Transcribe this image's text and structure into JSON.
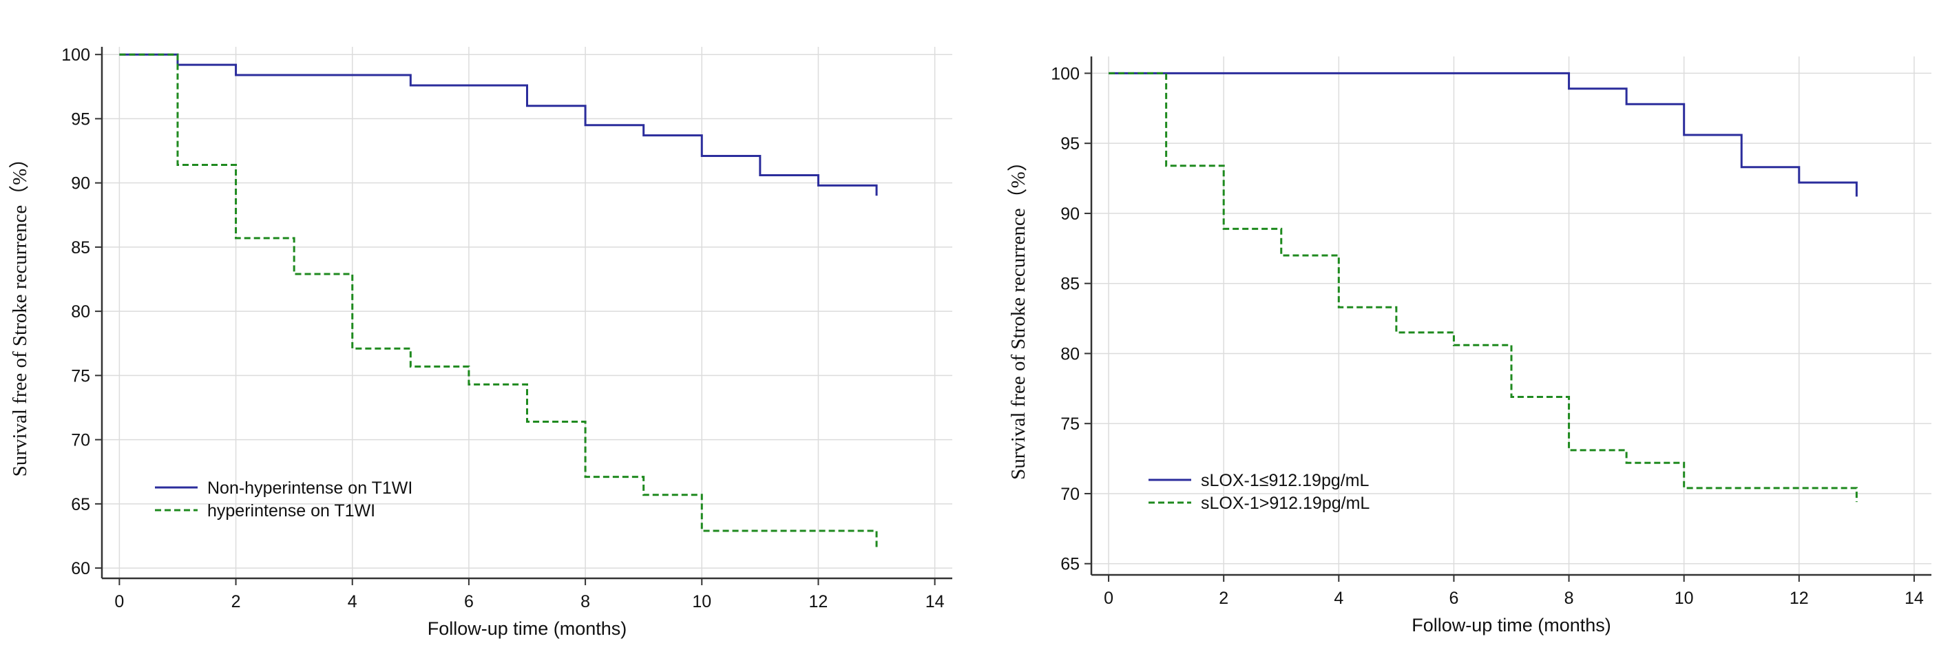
{
  "chart_data": [
    {
      "type": "line",
      "subtype": "kaplan-meier step",
      "xlabel": "Follow-up time (months)",
      "ylabel": "Survival free of Stroke recurrence（%）",
      "xlim": [
        -0.3,
        14.3
      ],
      "ylim": [
        59.2,
        100.6
      ],
      "xticks": [
        0,
        2,
        4,
        6,
        8,
        10,
        12,
        14
      ],
      "yticks": [
        60,
        65,
        70,
        75,
        80,
        85,
        90,
        95,
        100
      ],
      "grid": true,
      "legend_position": "bottom-left",
      "series": [
        {
          "name": "Non-hyperintense on T1WI",
          "color": "#2b2d9c",
          "style": "solid",
          "x": [
            0,
            1,
            2,
            5,
            7,
            8,
            9,
            10,
            11,
            12,
            13,
            13
          ],
          "y": [
            100,
            99.2,
            98.4,
            97.6,
            96.0,
            94.5,
            93.7,
            92.1,
            90.6,
            89.8,
            89.8,
            89.0
          ]
        },
        {
          "name": "hyperintense on T1WI",
          "color": "#1f8a1f",
          "style": "dashed",
          "x": [
            0,
            1,
            2,
            3,
            4,
            5,
            6,
            7,
            8,
            9,
            10,
            13,
            13
          ],
          "y": [
            100,
            91.4,
            85.7,
            82.9,
            77.1,
            75.7,
            74.3,
            71.4,
            67.1,
            65.7,
            62.9,
            62.9,
            61.4
          ]
        }
      ]
    },
    {
      "type": "line",
      "subtype": "kaplan-meier step",
      "xlabel": "Follow-up time (months)",
      "ylabel": "Survival free of Stroke recurrence（%）",
      "xlim": [
        -0.3,
        14.3
      ],
      "ylim": [
        64.2,
        101.2
      ],
      "xticks": [
        0,
        2,
        4,
        6,
        8,
        10,
        12,
        14
      ],
      "yticks": [
        65,
        70,
        75,
        80,
        85,
        90,
        95,
        100
      ],
      "grid": true,
      "legend_position": "bottom-left",
      "series": [
        {
          "name": "sLOX-1≤912.19pg/mL",
          "color": "#2b2d9c",
          "style": "solid",
          "x": [
            0,
            8,
            9,
            10,
            11,
            12,
            13,
            13
          ],
          "y": [
            100,
            98.9,
            97.8,
            95.6,
            93.3,
            92.2,
            92.2,
            91.2
          ]
        },
        {
          "name": "sLOX-1>912.19pg/mL",
          "color": "#1f8a1f",
          "style": "dashed",
          "x": [
            0,
            1,
            2,
            3,
            4,
            5,
            6,
            7,
            8,
            9,
            10,
            13,
            13
          ],
          "y": [
            100,
            93.4,
            88.9,
            87.0,
            83.3,
            81.5,
            80.6,
            76.9,
            73.1,
            72.2,
            70.4,
            70.4,
            69.4
          ]
        }
      ]
    }
  ]
}
